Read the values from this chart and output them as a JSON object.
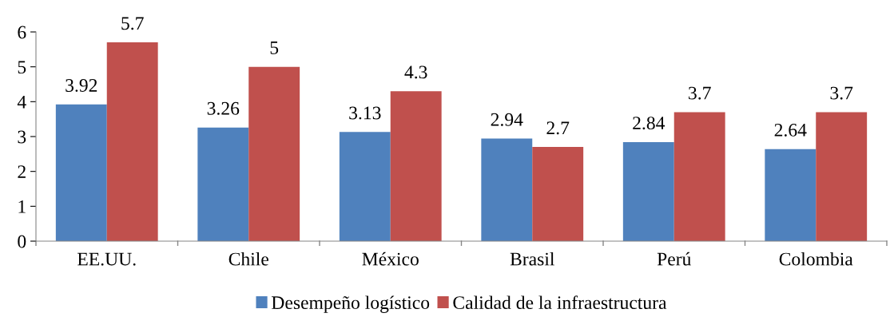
{
  "chart_data": {
    "type": "bar",
    "categories": [
      "EE.UU.",
      "Chile",
      "México",
      "Brasil",
      "Perú",
      "Colombia"
    ],
    "series": [
      {
        "name": "Desempeño logístico",
        "color": "#4f81bd",
        "values": [
          3.92,
          3.26,
          3.13,
          2.94,
          2.84,
          2.64
        ]
      },
      {
        "name": "Calidad de la infraestructura",
        "color": "#c0504d",
        "values": [
          5.7,
          5,
          4.3,
          2.7,
          3.7,
          3.7
        ]
      }
    ],
    "ylim": [
      0,
      6
    ],
    "yticks": [
      0,
      1,
      2,
      3,
      4,
      5,
      6
    ],
    "grid": false,
    "legend": "bottom",
    "data_labels": true
  }
}
